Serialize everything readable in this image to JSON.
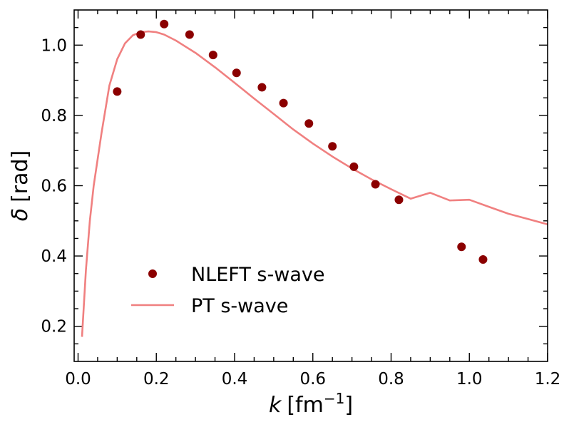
{
  "chart_data": {
    "type": "scatter+line",
    "xlabel_var": "k",
    "xlabel_unit_prefix": "[fm",
    "xlabel_unit_exp": "−1",
    "xlabel_unit_suffix": "]",
    "ylabel_var": "δ",
    "ylabel_unit": "[rad]",
    "xlim": [
      -0.01,
      1.2
    ],
    "ylim": [
      0.1,
      1.1
    ],
    "xticks": [
      0.0,
      0.2,
      0.4,
      0.6,
      0.8,
      1.0,
      1.2
    ],
    "xtick_labels": [
      "0.0",
      "0.2",
      "0.4",
      "0.6",
      "0.8",
      "1.0",
      "1.2"
    ],
    "xminor_step": 0.05,
    "yticks": [
      0.2,
      0.4,
      0.6,
      0.8,
      1.0
    ],
    "ytick_labels": [
      "0.2",
      "0.4",
      "0.6",
      "0.8",
      "1.0"
    ],
    "yminor_step": 0.05,
    "legend_position": "lower-left",
    "colors": {
      "scatter": "#8b0000",
      "line": "#f08080"
    },
    "series": [
      {
        "name": "NLEFT s-wave",
        "kind": "scatter",
        "x": [
          0.1,
          0.16,
          0.22,
          0.285,
          0.345,
          0.405,
          0.47,
          0.525,
          0.59,
          0.65,
          0.705,
          0.76,
          0.82,
          0.98,
          1.035
        ],
        "y": [
          0.868,
          1.03,
          1.06,
          1.03,
          0.972,
          0.921,
          0.88,
          0.835,
          0.777,
          0.712,
          0.654,
          0.604,
          0.56,
          0.426,
          0.39
        ]
      },
      {
        "name": "PT s-wave",
        "kind": "line",
        "x": [
          0.01,
          0.02,
          0.03,
          0.04,
          0.06,
          0.08,
          0.1,
          0.12,
          0.14,
          0.16,
          0.18,
          0.2,
          0.22,
          0.25,
          0.3,
          0.35,
          0.4,
          0.45,
          0.5,
          0.55,
          0.6,
          0.65,
          0.7,
          0.75,
          0.8,
          0.85,
          0.9,
          0.95,
          1.0,
          1.05,
          1.1,
          1.15,
          1.2
        ],
        "y": [
          0.17,
          0.36,
          0.5,
          0.6,
          0.75,
          0.885,
          0.96,
          1.005,
          1.028,
          1.037,
          1.039,
          1.037,
          1.03,
          1.013,
          0.978,
          0.937,
          0.893,
          0.848,
          0.804,
          0.76,
          0.72,
          0.683,
          0.649,
          0.618,
          0.59,
          0.563,
          0.58,
          0.558,
          0.56,
          0.54,
          0.52,
          0.505,
          0.49
        ]
      }
    ]
  }
}
